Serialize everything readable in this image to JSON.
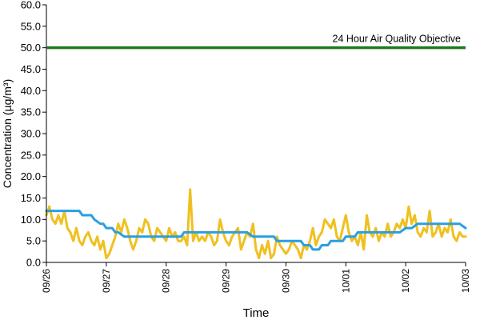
{
  "chart_data": {
    "type": "line",
    "title": "",
    "xlabel": "Time",
    "ylabel": "Concentration (µg/m³)",
    "ylim": [
      0,
      60
    ],
    "y_ticks": [
      "0.0",
      "5.0",
      "10.0",
      "15.0",
      "20.0",
      "25.0",
      "30.0",
      "35.0",
      "40.0",
      "45.0",
      "50.0",
      "55.0",
      "60.0"
    ],
    "x_tick_labels": [
      "09/26",
      "09/27",
      "09/28",
      "09/29",
      "09/30",
      "10/01",
      "10/02",
      "10/03"
    ],
    "grid": false,
    "colors": {
      "hourly": "#f0c020",
      "rolling": "#2a9fe0",
      "objective": "#1f7a1f",
      "axis": "#000000"
    },
    "objective_line": {
      "value": 50.0,
      "label": "24 Hour Air Quality Objective"
    },
    "series": [
      {
        "color_key": "hourly",
        "x": [
          0,
          0.05,
          0.1,
          0.15,
          0.2,
          0.25,
          0.3,
          0.35,
          0.4,
          0.45,
          0.5,
          0.55,
          0.6,
          0.65,
          0.7,
          0.75,
          0.8,
          0.85,
          0.9,
          0.95,
          1.0,
          1.05,
          1.1,
          1.15,
          1.2,
          1.25,
          1.3,
          1.35,
          1.4,
          1.45,
          1.5,
          1.55,
          1.6,
          1.65,
          1.7,
          1.75,
          1.8,
          1.85,
          1.9,
          1.95,
          2.0,
          2.05,
          2.1,
          2.15,
          2.2,
          2.25,
          2.3,
          2.35,
          2.4,
          2.45,
          2.5,
          2.55,
          2.6,
          2.65,
          2.7,
          2.75,
          2.8,
          2.85,
          2.9,
          2.95,
          3.0,
          3.05,
          3.1,
          3.15,
          3.2,
          3.25,
          3.3,
          3.35,
          3.4,
          3.45,
          3.5,
          3.55,
          3.6,
          3.65,
          3.7,
          3.75,
          3.8,
          3.85,
          3.9,
          3.95,
          4.0,
          4.05,
          4.1,
          4.15,
          4.2,
          4.25,
          4.3,
          4.35,
          4.4,
          4.45,
          4.5,
          4.55,
          4.6,
          4.65,
          4.7,
          4.75,
          4.8,
          4.85,
          4.9,
          4.95,
          5.0,
          5.05,
          5.1,
          5.15,
          5.2,
          5.25,
          5.3,
          5.35,
          5.4,
          5.45,
          5.5,
          5.55,
          5.6,
          5.65,
          5.7,
          5.75,
          5.8,
          5.85,
          5.9,
          5.95,
          6.0,
          6.05,
          6.1,
          6.15,
          6.2,
          6.25,
          6.3,
          6.35,
          6.4,
          6.45,
          6.5,
          6.55,
          6.6,
          6.65,
          6.7,
          6.75,
          6.8,
          6.85,
          6.9,
          6.95,
          7.0
        ],
        "values": [
          11,
          13,
          10,
          9,
          11,
          9,
          12,
          8,
          7,
          5,
          8,
          5,
          4,
          6,
          7,
          5,
          4,
          6,
          3,
          5,
          1,
          2,
          4,
          6,
          9,
          7,
          10,
          8,
          5,
          3,
          5,
          8,
          7,
          10,
          9,
          6,
          5,
          8,
          7,
          6,
          5,
          8,
          6,
          7,
          5,
          5,
          6,
          4,
          17,
          5,
          7,
          5,
          6,
          5,
          7,
          6,
          4,
          5,
          10,
          7,
          5,
          4,
          6,
          7,
          8,
          3,
          5,
          7,
          6,
          9,
          3,
          1,
          4,
          2,
          5,
          1,
          2,
          6,
          4,
          3,
          2,
          3,
          5,
          4,
          3,
          1,
          4,
          3,
          5,
          8,
          4,
          6,
          7,
          10,
          9,
          8,
          10,
          6,
          5,
          8,
          11,
          7,
          5,
          6,
          4,
          7,
          3,
          11,
          7,
          6,
          8,
          5,
          7,
          6,
          9,
          6,
          7,
          9,
          8,
          10,
          8,
          13,
          9,
          11,
          7,
          6,
          8,
          7,
          12,
          6,
          7,
          9,
          6,
          8,
          7,
          10,
          6,
          5,
          7,
          6,
          6
        ]
      },
      {
        "color_key": "rolling",
        "x": [
          0,
          0.55,
          0.6,
          0.75,
          0.8,
          0.9,
          0.95,
          1.0,
          1.05,
          1.1,
          1.15,
          1.2,
          1.3,
          1.35,
          1.4,
          2.25,
          2.3,
          2.35,
          2.4,
          3.35,
          3.45,
          3.5,
          3.8,
          3.85,
          4.25,
          4.3,
          4.4,
          4.45,
          4.55,
          4.6,
          4.7,
          4.75,
          4.95,
          5.0,
          5.15,
          5.2,
          5.9,
          6.0,
          6.1,
          6.2,
          6.85,
          6.9,
          7.0
        ],
        "values": [
          12,
          12,
          11,
          11,
          10,
          9,
          9,
          8,
          8,
          8,
          7,
          7,
          6,
          6,
          6,
          6,
          7,
          7,
          7,
          7,
          6,
          6,
          6,
          5,
          5,
          4,
          4,
          3,
          3,
          4,
          4,
          5,
          5,
          6,
          6,
          7,
          7,
          8,
          8,
          9,
          9,
          9,
          8
        ]
      }
    ]
  }
}
